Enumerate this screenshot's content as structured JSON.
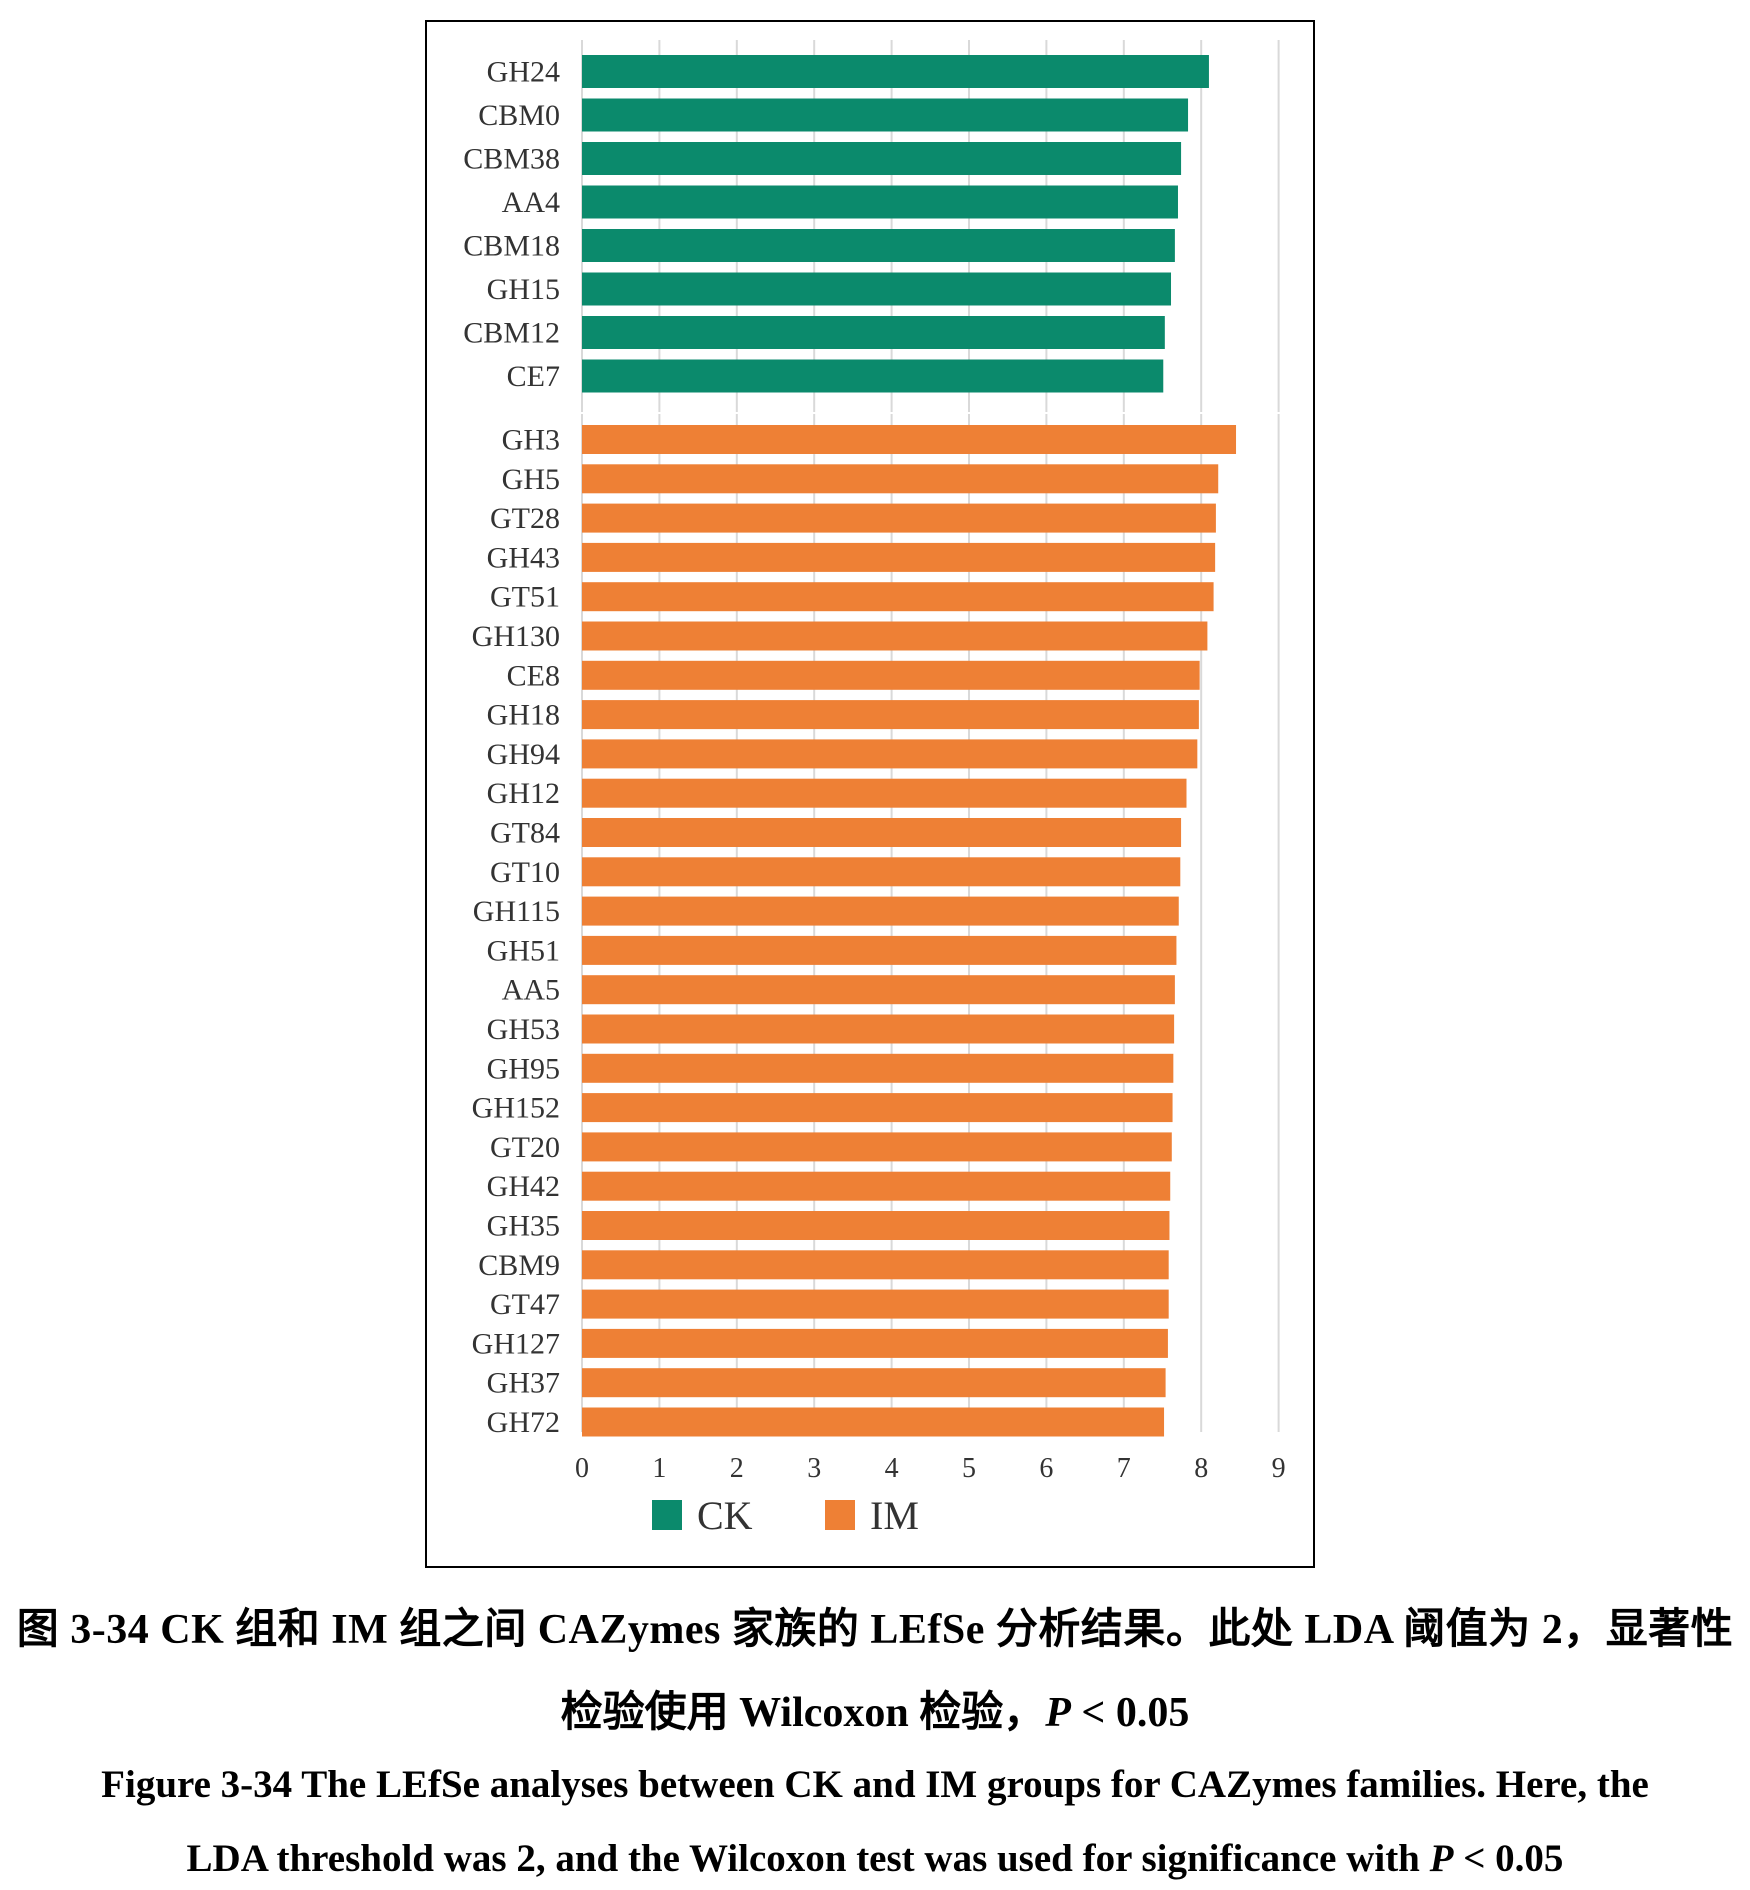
{
  "chart_data": {
    "type": "bar",
    "orientation": "horizontal",
    "xlim": [
      0,
      9
    ],
    "xticks": [
      "0",
      "1",
      "2",
      "3",
      "4",
      "5",
      "6",
      "7",
      "8",
      "9"
    ],
    "grid": true,
    "legend_placement": "bottom",
    "groups": [
      {
        "name": "CK",
        "color": "#0b8a6c",
        "categories": [
          "GH24",
          "CBM0",
          "CBM38",
          "AA4",
          "CBM18",
          "GH15",
          "CBM12",
          "CE7"
        ],
        "values": [
          8.1,
          7.83,
          7.74,
          7.7,
          7.66,
          7.61,
          7.53,
          7.51
        ]
      },
      {
        "name": "IM",
        "color": "#ee8035",
        "categories": [
          "GH3",
          "GH5",
          "GT28",
          "GH43",
          "GT51",
          "GH130",
          "CE8",
          "GH18",
          "GH94",
          "GH12",
          "GT84",
          "GT10",
          "GH115",
          "GH51",
          "AA5",
          "GH53",
          "GH95",
          "GH152",
          "GT20",
          "GH42",
          "GH35",
          "CBM9",
          "GT47",
          "GH127",
          "GH37",
          "GH72"
        ],
        "values": [
          8.45,
          8.22,
          8.19,
          8.18,
          8.16,
          8.08,
          7.98,
          7.97,
          7.95,
          7.81,
          7.74,
          7.73,
          7.71,
          7.68,
          7.66,
          7.65,
          7.64,
          7.63,
          7.62,
          7.6,
          7.59,
          7.58,
          7.58,
          7.57,
          7.54,
          7.52
        ]
      }
    ]
  },
  "caption": {
    "zh_line1": "图 3-34 CK 组和 IM 组之间 CAZymes 家族的 LEfSe 分析结果。此处 LDA 阈值为 2，显著性",
    "zh_line2_prefix": "检验使用 Wilcoxon 检验，",
    "p_symbol": "P",
    "zh_line2_suffix": " < 0.05",
    "en_line1": "Figure 3-34 The LEfSe analyses between CK and IM groups for CAZymes families. Here, the",
    "en_line2_prefix": "LDA threshold was 2, and the Wilcoxon test was used for significance with ",
    "en_line2_suffix": " < 0.05"
  }
}
